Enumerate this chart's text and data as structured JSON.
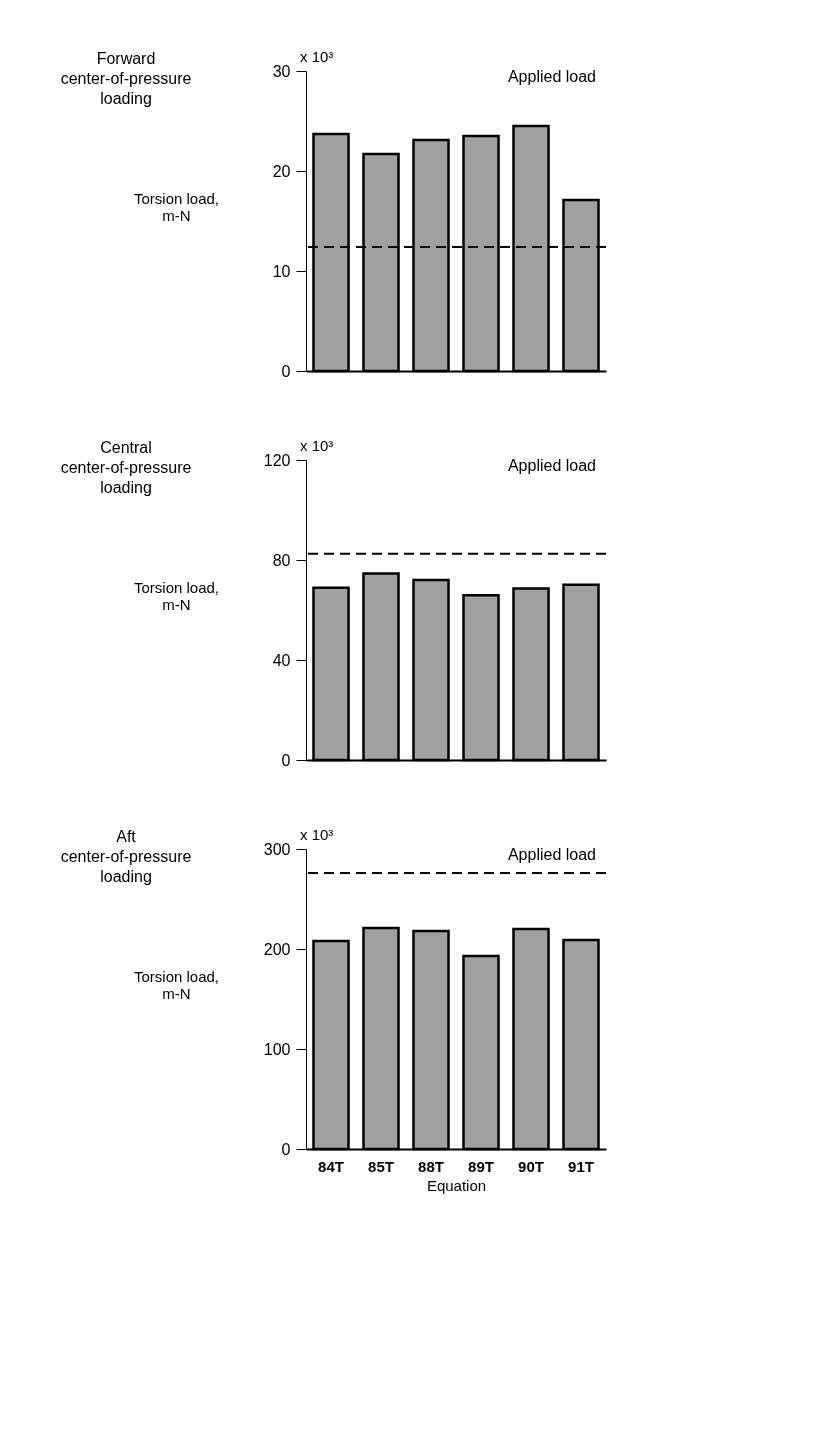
{
  "chart_data": [
    {
      "type": "bar",
      "title": "Forward center-of-pressure loading",
      "ylabel": "Torsion load, m-N",
      "categories": [
        null,
        null,
        null,
        null,
        null,
        null
      ],
      "values": [
        23.7,
        21.7,
        23.1,
        23.5,
        24.5,
        17.1
      ],
      "color": "#a0a0a0",
      "ylim": [
        0,
        30
      ],
      "yticks": [
        0,
        10,
        20,
        30
      ],
      "annotations": [
        "x 10³"
      ],
      "ref_lines": [
        {
          "axis": "y",
          "value": 12.4,
          "label": "Applied load",
          "line_style": "dashed",
          "color": "#000000"
        }
      ],
      "tick_labels": "y",
      "grid": false
    },
    {
      "type": "bar",
      "title": "Central center-of-pressure loading",
      "ylabel": "Torsion load, m-N",
      "categories": [
        null,
        null,
        null,
        null,
        null,
        null
      ],
      "values": [
        68.9,
        74.6,
        72.0,
        65.9,
        68.6,
        70.1
      ],
      "color": "#a0a0a0",
      "ylim": [
        0,
        120
      ],
      "yticks": [
        0,
        40,
        80,
        120
      ],
      "annotations": [
        "x 10³"
      ],
      "ref_lines": [
        {
          "axis": "y",
          "value": 82.5,
          "label": "Applied load",
          "line_style": "dashed",
          "color": "#000000"
        }
      ],
      "tick_labels": "y",
      "grid": false
    },
    {
      "type": "bar",
      "title": "Aft center-of-pressure loading",
      "ylabel": "Torsion load, m-N",
      "xlabel": "Equation",
      "categories": [
        "84T",
        "85T",
        "88T",
        "89T",
        "90T",
        "91T"
      ],
      "values": [
        208,
        221,
        218,
        193,
        220,
        209
      ],
      "color": "#a0a0a0",
      "ylim": [
        0,
        300
      ],
      "yticks": [
        0,
        100,
        200,
        300
      ],
      "annotations": [
        "x 10³"
      ],
      "ref_lines": [
        {
          "axis": "y",
          "value": 276,
          "label": "Applied load",
          "line_style": "dashed",
          "color": "#000000"
        }
      ],
      "grid": false
    }
  ]
}
